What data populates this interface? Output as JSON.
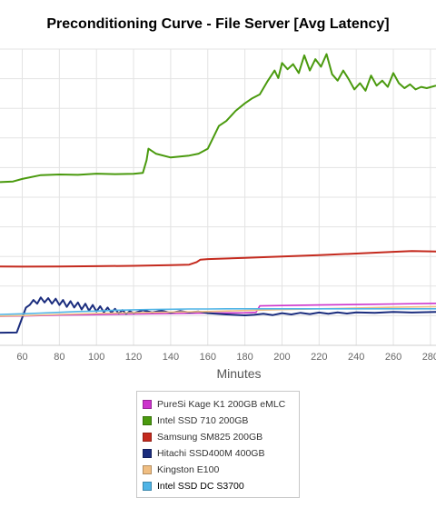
{
  "chart_data": {
    "type": "line",
    "title": "Preconditioning Curve - File Server [Avg Latency]",
    "xlabel": "Minutes",
    "ylabel": "",
    "xlim": [
      48,
      283
    ],
    "x_ticks": [
      60,
      80,
      100,
      120,
      140,
      160,
      180,
      200,
      220,
      240,
      260,
      280
    ],
    "grid": true,
    "legend": "bottom-center",
    "series": [
      {
        "name": "PureSi Kage K1 200GB eMLC",
        "color": "#cc33cc",
        "points": [
          [
            48,
            0.23
          ],
          [
            60,
            0.233
          ],
          [
            80,
            0.24
          ],
          [
            100,
            0.244
          ],
          [
            120,
            0.249
          ],
          [
            140,
            0.252
          ],
          [
            160,
            0.256
          ],
          [
            180,
            0.258
          ],
          [
            186,
            0.262
          ],
          [
            188,
            0.313
          ],
          [
            200,
            0.316
          ],
          [
            220,
            0.32
          ],
          [
            240,
            0.324
          ],
          [
            260,
            0.328
          ],
          [
            283,
            0.333
          ]
        ]
      },
      {
        "name": "Intel SSD 710 200GB",
        "color": "#4a9a0e",
        "points": [
          [
            48,
            1.295
          ],
          [
            55,
            1.3
          ],
          [
            60,
            1.32
          ],
          [
            70,
            1.35
          ],
          [
            80,
            1.355
          ],
          [
            90,
            1.352
          ],
          [
            100,
            1.362
          ],
          [
            110,
            1.358
          ],
          [
            120,
            1.36
          ],
          [
            125,
            1.368
          ],
          [
            127,
            1.47
          ],
          [
            128,
            1.56
          ],
          [
            132,
            1.52
          ],
          [
            140,
            1.49
          ],
          [
            150,
            1.505
          ],
          [
            155,
            1.52
          ],
          [
            160,
            1.56
          ],
          [
            163,
            1.65
          ],
          [
            166,
            1.74
          ],
          [
            170,
            1.78
          ],
          [
            175,
            1.86
          ],
          [
            180,
            1.92
          ],
          [
            184,
            1.96
          ],
          [
            188,
            1.99
          ],
          [
            192,
            2.09
          ],
          [
            196,
            2.18
          ],
          [
            198,
            2.12
          ],
          [
            200,
            2.24
          ],
          [
            203,
            2.19
          ],
          [
            206,
            2.23
          ],
          [
            209,
            2.16
          ],
          [
            212,
            2.3
          ],
          [
            215,
            2.18
          ],
          [
            218,
            2.27
          ],
          [
            221,
            2.21
          ],
          [
            224,
            2.31
          ],
          [
            227,
            2.15
          ],
          [
            230,
            2.1
          ],
          [
            233,
            2.18
          ],
          [
            236,
            2.11
          ],
          [
            239,
            2.03
          ],
          [
            242,
            2.08
          ],
          [
            245,
            2.02
          ],
          [
            248,
            2.14
          ],
          [
            251,
            2.06
          ],
          [
            254,
            2.1
          ],
          [
            257,
            2.05
          ],
          [
            260,
            2.16
          ],
          [
            263,
            2.08
          ],
          [
            266,
            2.04
          ],
          [
            269,
            2.07
          ],
          [
            272,
            2.03
          ],
          [
            275,
            2.05
          ],
          [
            278,
            2.04
          ],
          [
            283,
            2.06
          ]
        ]
      },
      {
        "name": "Samsung SM825 200GB",
        "color": "#c42a1e",
        "points": [
          [
            48,
            0.625
          ],
          [
            60,
            0.624
          ],
          [
            80,
            0.626
          ],
          [
            100,
            0.628
          ],
          [
            120,
            0.631
          ],
          [
            140,
            0.636
          ],
          [
            150,
            0.64
          ],
          [
            154,
            0.66
          ],
          [
            156,
            0.68
          ],
          [
            160,
            0.684
          ],
          [
            180,
            0.694
          ],
          [
            200,
            0.704
          ],
          [
            220,
            0.716
          ],
          [
            240,
            0.728
          ],
          [
            260,
            0.742
          ],
          [
            270,
            0.748
          ],
          [
            283,
            0.745
          ]
        ]
      },
      {
        "name": "Hitachi SSD400M 400GB",
        "color": "#1b2d7e",
        "points": [
          [
            48,
            0.1
          ],
          [
            57,
            0.102
          ],
          [
            58,
            0.14
          ],
          [
            60,
            0.22
          ],
          [
            62,
            0.3
          ],
          [
            64,
            0.32
          ],
          [
            66,
            0.36
          ],
          [
            68,
            0.33
          ],
          [
            70,
            0.38
          ],
          [
            72,
            0.34
          ],
          [
            74,
            0.375
          ],
          [
            76,
            0.33
          ],
          [
            78,
            0.37
          ],
          [
            80,
            0.32
          ],
          [
            82,
            0.36
          ],
          [
            84,
            0.305
          ],
          [
            86,
            0.35
          ],
          [
            88,
            0.3
          ],
          [
            90,
            0.34
          ],
          [
            92,
            0.285
          ],
          [
            94,
            0.33
          ],
          [
            96,
            0.275
          ],
          [
            98,
            0.32
          ],
          [
            100,
            0.268
          ],
          [
            102,
            0.31
          ],
          [
            104,
            0.262
          ],
          [
            106,
            0.3
          ],
          [
            108,
            0.258
          ],
          [
            110,
            0.29
          ],
          [
            112,
            0.252
          ],
          [
            114,
            0.28
          ],
          [
            116,
            0.25
          ],
          [
            118,
            0.27
          ],
          [
            120,
            0.255
          ],
          [
            125,
            0.278
          ],
          [
            130,
            0.26
          ],
          [
            135,
            0.275
          ],
          [
            140,
            0.258
          ],
          [
            145,
            0.272
          ],
          [
            150,
            0.262
          ],
          [
            155,
            0.268
          ],
          [
            160,
            0.255
          ],
          [
            170,
            0.245
          ],
          [
            180,
            0.238
          ],
          [
            185,
            0.242
          ],
          [
            190,
            0.25
          ],
          [
            195,
            0.24
          ],
          [
            200,
            0.255
          ],
          [
            205,
            0.245
          ],
          [
            210,
            0.258
          ],
          [
            215,
            0.248
          ],
          [
            220,
            0.26
          ],
          [
            225,
            0.25
          ],
          [
            230,
            0.262
          ],
          [
            235,
            0.252
          ],
          [
            240,
            0.262
          ],
          [
            250,
            0.258
          ],
          [
            260,
            0.265
          ],
          [
            270,
            0.26
          ],
          [
            283,
            0.265
          ]
        ]
      },
      {
        "name": "Kingston E100",
        "color": "#f0be82",
        "points": [
          [
            48,
            0.232
          ],
          [
            60,
            0.236
          ],
          [
            80,
            0.245
          ],
          [
            100,
            0.252
          ],
          [
            120,
            0.258
          ],
          [
            140,
            0.264
          ],
          [
            160,
            0.268
          ],
          [
            180,
            0.276
          ],
          [
            200,
            0.283
          ],
          [
            220,
            0.29
          ],
          [
            240,
            0.296
          ],
          [
            260,
            0.302
          ],
          [
            283,
            0.307
          ]
        ]
      },
      {
        "name": "Intel SSD DC S3700",
        "color": "#4fb4e6",
        "points": [
          [
            48,
            0.245
          ],
          [
            60,
            0.25
          ],
          [
            70,
            0.256
          ],
          [
            80,
            0.262
          ],
          [
            90,
            0.268
          ],
          [
            100,
            0.272
          ],
          [
            110,
            0.278
          ],
          [
            120,
            0.282
          ],
          [
            130,
            0.284
          ],
          [
            140,
            0.286
          ],
          [
            150,
            0.288
          ],
          [
            160,
            0.288
          ],
          [
            170,
            0.29
          ],
          [
            180,
            0.29
          ],
          [
            190,
            0.29
          ],
          [
            200,
            0.29
          ],
          [
            210,
            0.29
          ],
          [
            220,
            0.29
          ],
          [
            230,
            0.29
          ],
          [
            240,
            0.29
          ],
          [
            250,
            0.29
          ],
          [
            260,
            0.29
          ],
          [
            270,
            0.29
          ],
          [
            283,
            0.29
          ]
        ]
      }
    ]
  }
}
